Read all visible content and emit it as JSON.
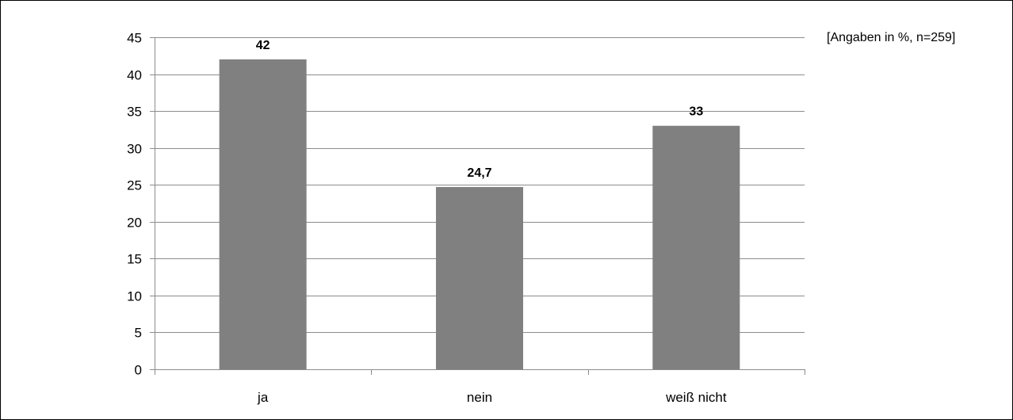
{
  "chart_data": {
    "type": "bar",
    "categories": [
      "ja",
      "nein",
      "weiß nicht"
    ],
    "values": [
      42,
      24.7,
      33
    ],
    "data_labels": [
      "42",
      "24,7",
      "33"
    ],
    "ylim": [
      0,
      45
    ],
    "y_ticks": [
      0,
      5,
      10,
      15,
      20,
      25,
      30,
      35,
      40,
      45
    ],
    "grid": true,
    "note": "[Angaben in %, n=259]",
    "colors": {
      "bar": "#808080",
      "grid": "#8c8c8c",
      "axis": "#8c8c8c",
      "text": "#000000"
    }
  }
}
